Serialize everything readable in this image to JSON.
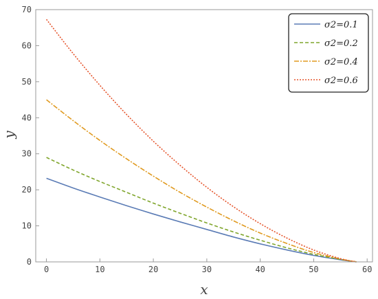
{
  "chart_data": {
    "type": "line",
    "xlabel": "x",
    "ylabel": "y",
    "xlim": [
      -2,
      61
    ],
    "ylim": [
      0,
      70
    ],
    "xticks": [
      0,
      10,
      20,
      30,
      40,
      50,
      60
    ],
    "yticks": [
      0,
      10,
      20,
      30,
      40,
      50,
      60,
      70
    ],
    "grid": false,
    "legend_position": "top-right",
    "x": [
      0,
      5,
      10,
      15,
      20,
      25,
      30,
      35,
      40,
      45,
      50,
      55,
      58
    ],
    "series": [
      {
        "name": "σ2=0.1",
        "values": [
          23.2,
          20.5,
          18.0,
          15.6,
          13.3,
          11.1,
          9.0,
          6.9,
          5.0,
          3.3,
          1.8,
          0.6,
          0.0
        ],
        "color": "#5a7bb5",
        "style": "solid"
      },
      {
        "name": "σ2=0.2",
        "values": [
          29.0,
          25.5,
          22.3,
          19.3,
          16.3,
          13.5,
          10.8,
          8.3,
          6.0,
          3.9,
          2.1,
          0.7,
          0.0
        ],
        "color": "#7fa52b",
        "style": "dashed"
      },
      {
        "name": "σ2=0.4",
        "values": [
          45.0,
          39.2,
          33.7,
          28.6,
          23.8,
          19.3,
          15.2,
          11.4,
          8.0,
          5.1,
          2.6,
          0.8,
          0.0
        ],
        "color": "#e09a1f",
        "style": "dashdot"
      },
      {
        "name": "σ2=0.6",
        "values": [
          67.3,
          57.8,
          49.0,
          40.9,
          33.5,
          26.8,
          20.7,
          15.3,
          10.6,
          6.6,
          3.3,
          0.9,
          0.0
        ],
        "color": "#e5532a",
        "style": "dotted"
      }
    ]
  }
}
